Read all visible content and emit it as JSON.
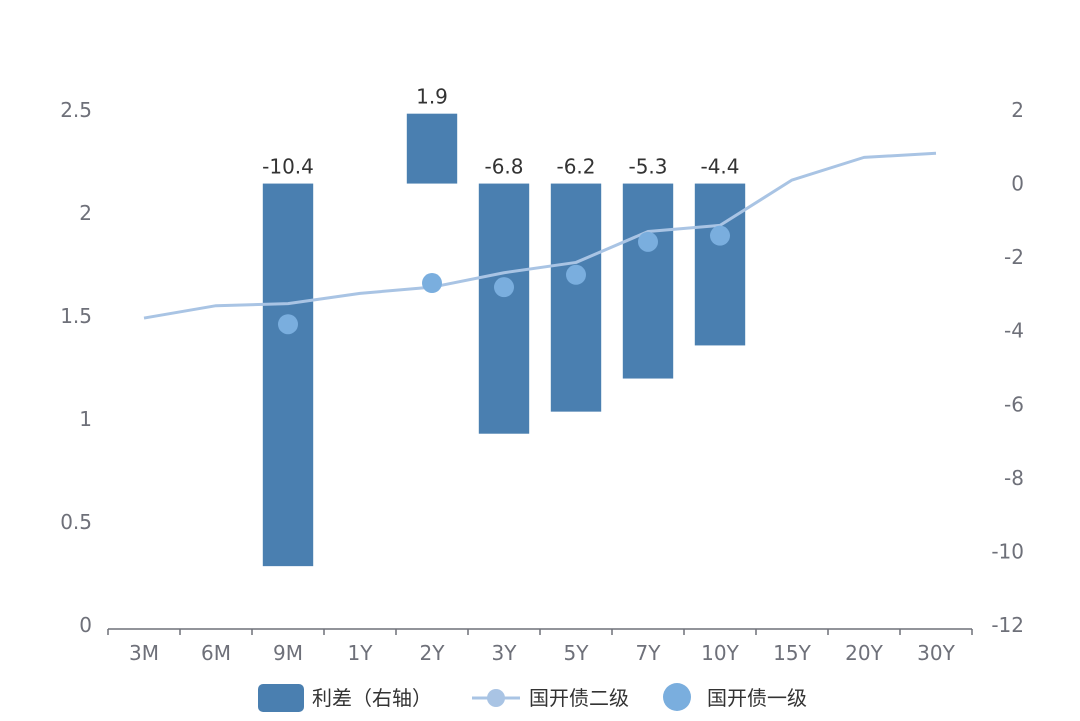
{
  "chart_data": {
    "type": "bar",
    "categories": [
      "3M",
      "6M",
      "9M",
      "1Y",
      "2Y",
      "3Y",
      "5Y",
      "7Y",
      "10Y",
      "15Y",
      "20Y",
      "30Y"
    ],
    "y_left": {
      "ticks": [
        "0",
        "0.5",
        "1",
        "1.5",
        "2",
        "2.5"
      ],
      "ylim": [
        0,
        2.5
      ]
    },
    "y_right": {
      "ticks": [
        "2",
        "0",
        "-2",
        "-4",
        "-6",
        "-8",
        "-10",
        "-12"
      ],
      "ylim": [
        -12,
        2
      ]
    },
    "series": [
      {
        "name": "利差（右轴）",
        "type": "bar",
        "axis": "right",
        "color": "#4a7fb0",
        "values": [
          null,
          null,
          -10.4,
          null,
          1.9,
          -6.8,
          -6.2,
          -5.3,
          -4.4,
          null,
          null,
          null
        ],
        "labels": [
          null,
          null,
          "-10.4",
          null,
          "1.9",
          "-6.8",
          "-6.2",
          "-5.3",
          "-4.4",
          null,
          null,
          null
        ]
      },
      {
        "name": "国开债二级",
        "type": "line",
        "axis": "left",
        "color": "#a9c4e4",
        "values": [
          1.49,
          1.55,
          1.56,
          1.61,
          1.64,
          1.71,
          1.76,
          1.91,
          1.94,
          2.16,
          2.27,
          2.29
        ]
      },
      {
        "name": "国开债一级",
        "type": "scatter",
        "axis": "left",
        "color": "#7aaede",
        "values": [
          null,
          null,
          1.46,
          null,
          1.66,
          1.64,
          1.7,
          1.86,
          1.89,
          null,
          null,
          null
        ]
      }
    ],
    "legend_position": "bottom"
  }
}
